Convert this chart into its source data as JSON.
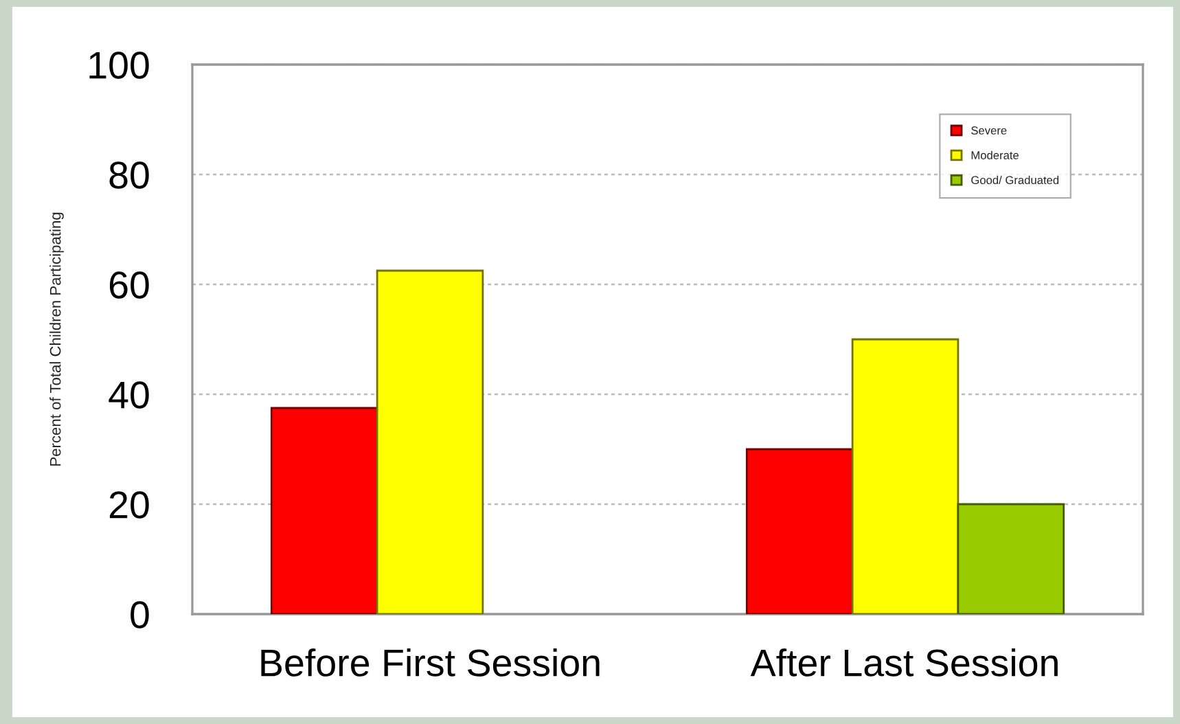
{
  "chart_data": {
    "type": "bar",
    "ylabel": "Percent of Total Children Participating",
    "categories": [
      "Before First Session",
      "After Last Session"
    ],
    "series": [
      {
        "name": "Severe",
        "color": "#ff0000",
        "values": [
          37.5,
          30
        ]
      },
      {
        "name": "Moderate",
        "color": "#ffff00",
        "values": [
          62.5,
          50
        ]
      },
      {
        "name": "Good/ Graduated",
        "color": "#99cc00",
        "values": [
          null,
          20
        ]
      }
    ],
    "ylim": [
      0,
      100
    ],
    "yticks": [
      0,
      20,
      40,
      60,
      80,
      100
    ],
    "grid": "y",
    "legend": "top right"
  }
}
